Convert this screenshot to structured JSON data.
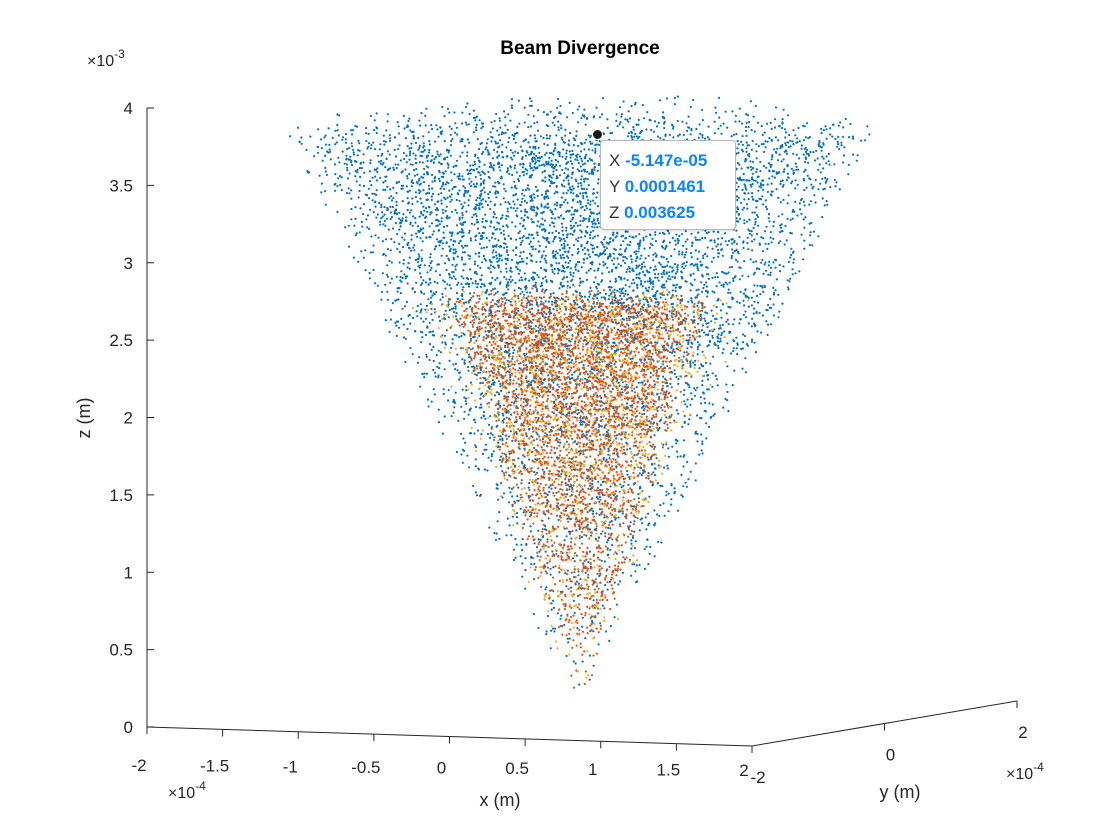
{
  "chart_data": {
    "type": "scatter",
    "title": "Beam Divergence",
    "xlabel": "x (m)",
    "ylabel": "y (m)",
    "zlabel": "z (m)",
    "x_multiplier": "×10^-4",
    "y_multiplier": "×10^-4",
    "z_multiplier": "×10^-3",
    "xlim": [
      -2,
      2
    ],
    "ylim": [
      -2,
      2
    ],
    "zlim": [
      0,
      4
    ],
    "x_ticks": [
      "-2",
      "-1.5",
      "-1",
      "-0.5",
      "0",
      "0.5",
      "1",
      "1.5",
      "2"
    ],
    "y_ticks": [
      "-2",
      "0",
      "2"
    ],
    "z_ticks": [
      "0",
      "0.5",
      "1",
      "1.5",
      "2",
      "2.5",
      "3",
      "3.5",
      "4"
    ],
    "series": [
      {
        "color": "#0072BD",
        "cone": "inverted",
        "z_range": [
          0,
          3.9
        ],
        "top_radius": 1.9
      },
      {
        "color": "#D95319",
        "cone": "inverted",
        "z_range": [
          0,
          2.75
        ],
        "top_radius": 1.2
      },
      {
        "color": "#EDB120",
        "cone": "inverted",
        "z_range": [
          0,
          2.75
        ],
        "top_radius": 1.2
      }
    ],
    "datatip": {
      "x_label": "X",
      "x_value": "-5.147e-05",
      "y_label": "Y",
      "y_value": "0.0001461",
      "z_label": "Z",
      "z_value": "0.003625"
    }
  }
}
